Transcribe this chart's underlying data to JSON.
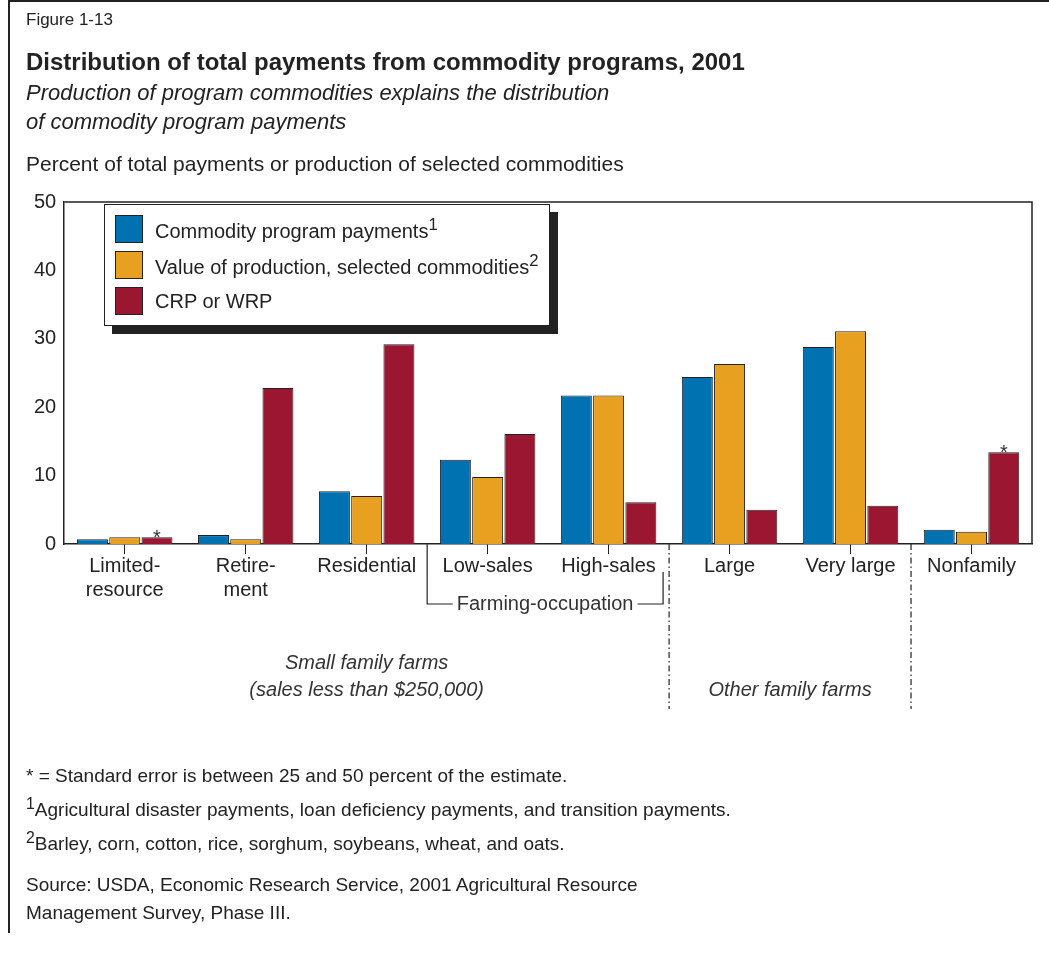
{
  "chart_data": {
    "type": "bar",
    "title": "Distribution of total payments from commodity programs, 2001",
    "subtitle": "Production of program commodities explains the distribution\nof commodity program payments",
    "ylabel": "Percent of total payments or production of selected commodities",
    "categories": [
      "Limited-\nresource",
      "Retire-\nment",
      "Residential",
      "Low-sales",
      "High-sales",
      "Large",
      "Very large",
      "Nonfamily"
    ],
    "series": [
      {
        "name": "Commodity program payments$^{1}$",
        "color": "#0072b2",
        "values": [
          0.7,
          1.3,
          7.7,
          12.3,
          21.7,
          24.4,
          28.8,
          2.1
        ]
      },
      {
        "name": "Value of production, selected commodities$^{2}$",
        "color": "#e8a020",
        "values": [
          1.0,
          0.7,
          7.0,
          9.8,
          21.7,
          26.3,
          31.1,
          1.8
        ]
      },
      {
        "name": "CRP or WRP",
        "color": "#9b1631",
        "values": [
          1.0,
          22.8,
          29.2,
          16.1,
          6.1,
          5.0,
          5.6,
          13.4
        ],
        "value_labels": [
          "*",
          null,
          null,
          null,
          null,
          null,
          null,
          "*"
        ]
      }
    ],
    "ylim": [
      0,
      50
    ],
    "yticks": [
      0,
      10,
      20,
      30,
      40,
      50
    ],
    "grid": false,
    "legend": "top left",
    "annotations": [
      "Figure 1-13",
      "Farming-occupation",
      "Small family farms\n(sales less than $250,000)",
      "Other family farms",
      "* = Standard error is between 25 and 50 percent of the estimate.",
      "$^{1}$Agricultural disaster payments, loan deficiency payments, and transition payments.",
      "$^{2}$Barley, corn, cotton, rice, sorghum, soybeans, wheat, and oats.",
      "Source: USDA, Economic Research Service, 2001 Agricultural Resource\nManagement Survey, Phase III."
    ]
  }
}
